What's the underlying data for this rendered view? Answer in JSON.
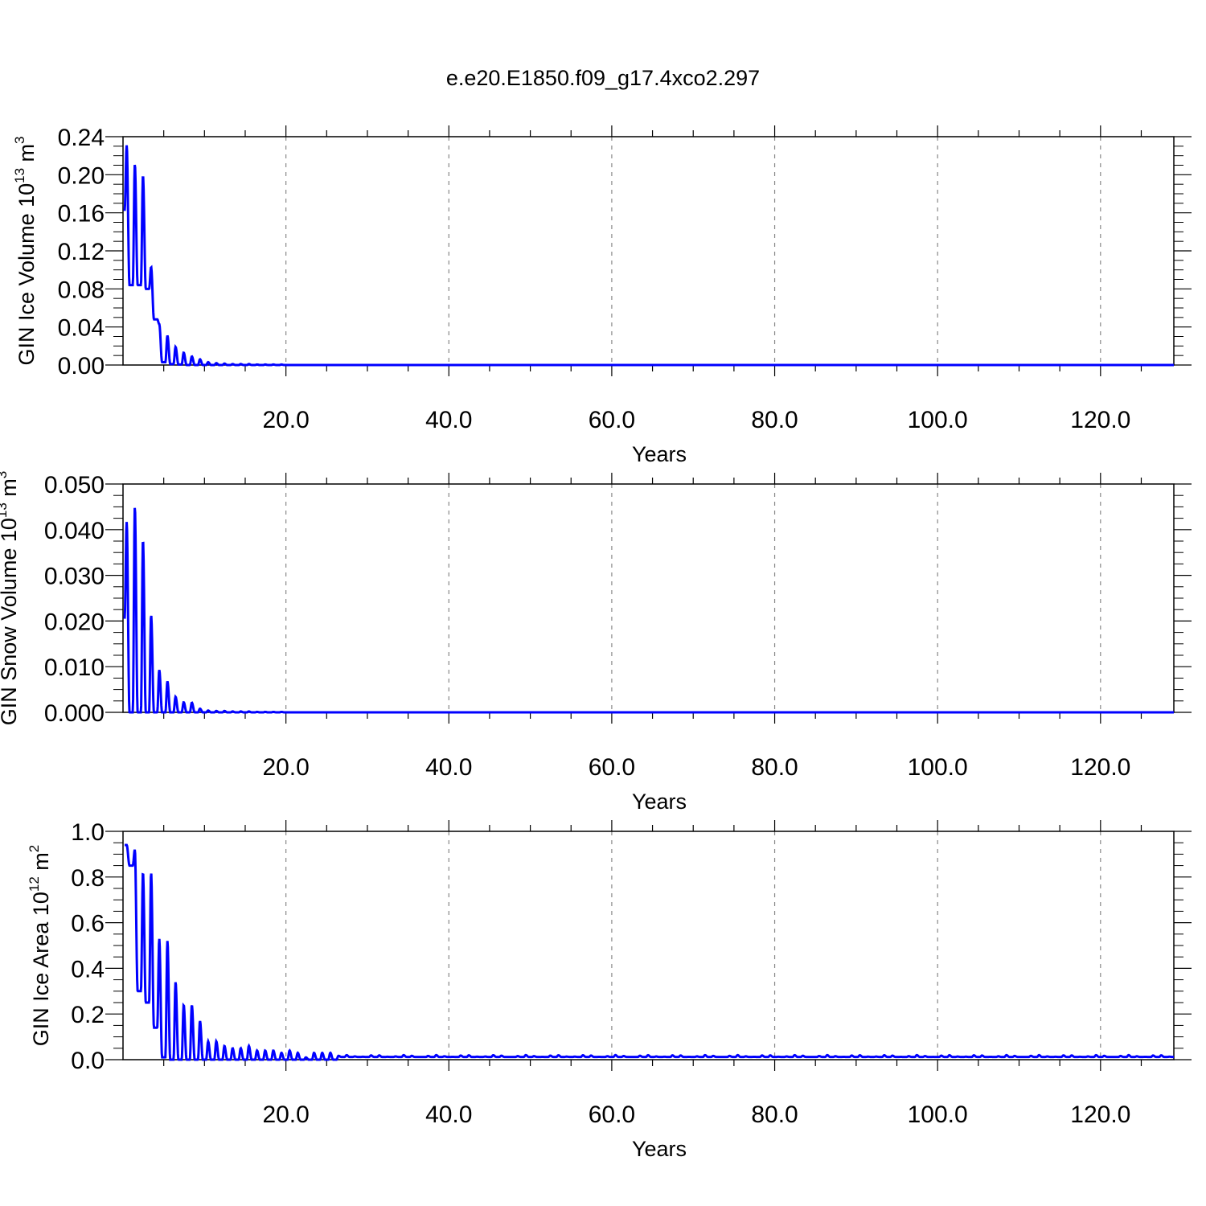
{
  "chart_data": [
    {
      "type": "line",
      "title": "e.e20.E1850.f09_g17.4xco2.297",
      "ylabel": {
        "main": "GIN Ice Volume 10",
        "exp": "13",
        "unit": " m",
        "unit_exp": "3"
      },
      "xlabel": "Years",
      "xlim": [
        0,
        129
      ],
      "ylim": [
        0,
        0.24
      ],
      "xticks": [
        20,
        40,
        60,
        80,
        100,
        120
      ],
      "xtick_labels": [
        "20.0",
        "40.0",
        "60.0",
        "80.0",
        "100.0",
        "120.0"
      ],
      "yticks": [
        0,
        0.04,
        0.08,
        0.12,
        0.16,
        0.2,
        0.24
      ],
      "ytick_labels": [
        "0.00",
        "0.04",
        "0.08",
        "0.12",
        "0.16",
        "0.20",
        "0.24"
      ],
      "grid": "x-dashed",
      "line_color": "#0000ff",
      "series": [
        {
          "annual_max": [
            0.231,
            0.211,
            0.199,
            0.103,
            0.043,
            0.031,
            0.019,
            0.013,
            0.009,
            0.006,
            0.003,
            0.002,
            0.0015,
            0.001,
            0.001,
            0.001,
            0.0005,
            0.0005,
            0.0005,
            0.0005
          ],
          "annual_min": [
            0.084,
            0.084,
            0.08,
            0.048,
            0.003,
            0.001,
            0.0005,
            0.0,
            0.0,
            0.0,
            0.0,
            0.0,
            0.0,
            0.0,
            0.0,
            0.0,
            0.0,
            0.0,
            0.0,
            0.0
          ],
          "start_value": 0.162,
          "tail_value": 0.0
        }
      ]
    },
    {
      "type": "line",
      "ylabel": {
        "main": "GIN Snow Volume 10",
        "exp": "13",
        "unit": " m",
        "unit_exp": "3"
      },
      "xlabel": "Years",
      "xlim": [
        0,
        129
      ],
      "ylim": [
        0,
        0.05
      ],
      "xticks": [
        20,
        40,
        60,
        80,
        100,
        120
      ],
      "xtick_labels": [
        "20.0",
        "40.0",
        "60.0",
        "80.0",
        "100.0",
        "120.0"
      ],
      "yticks": [
        0,
        0.01,
        0.02,
        0.03,
        0.04,
        0.05
      ],
      "ytick_labels": [
        "0.000",
        "0.010",
        "0.020",
        "0.030",
        "0.040",
        "0.050"
      ],
      "grid": "x-dashed",
      "line_color": "#0000ff",
      "series": [
        {
          "annual_max": [
            0.0417,
            0.045,
            0.0377,
            0.0213,
            0.0093,
            0.0068,
            0.0034,
            0.0022,
            0.0021,
            0.0008,
            0.0004,
            0.0003,
            0.0003,
            0.0002,
            0.0002,
            0.0002,
            0.0001,
            0.0001,
            0.0001,
            0.0001
          ],
          "annual_min": [
            0.0,
            0.0,
            0.0,
            0.0,
            0.0,
            0.0,
            0.0,
            0.0,
            0.0,
            0.0,
            0.0,
            0.0,
            0.0,
            0.0,
            0.0,
            0.0,
            0.0,
            0.0,
            0.0,
            0.0
          ],
          "start_value": 0.0205,
          "tail_value": 0.0
        }
      ]
    },
    {
      "type": "line",
      "ylabel": {
        "main": "GIN Ice Area 10",
        "exp": "12",
        "unit": " m",
        "unit_exp": "2"
      },
      "xlabel": "Years",
      "xlim": [
        0,
        129
      ],
      "ylim": [
        0,
        1.0
      ],
      "xticks": [
        20,
        40,
        60,
        80,
        100,
        120
      ],
      "xtick_labels": [
        "20.0",
        "40.0",
        "60.0",
        "80.0",
        "100.0",
        "120.0"
      ],
      "yticks": [
        0,
        0.2,
        0.4,
        0.6,
        0.8,
        1.0
      ],
      "ytick_labels": [
        "0.0",
        "0.2",
        "0.4",
        "0.6",
        "0.8",
        "1.0"
      ],
      "grid": "x-dashed",
      "line_color": "#0000ff",
      "series": [
        {
          "annual_max": [
            0.94,
            0.92,
            0.82,
            0.82,
            0.53,
            0.52,
            0.34,
            0.24,
            0.24,
            0.17,
            0.08,
            0.08,
            0.06,
            0.05,
            0.05,
            0.06,
            0.04,
            0.04,
            0.04,
            0.03,
            0.04,
            0.03,
            0.01,
            0.03,
            0.03,
            0.03
          ],
          "annual_min": [
            0.85,
            0.3,
            0.25,
            0.14,
            0.01,
            0.0,
            0.0,
            0.0,
            0.0,
            0.0,
            0.0,
            0.0,
            0.0,
            0.0,
            0.0,
            0.0,
            0.0,
            0.0,
            0.0,
            0.0,
            0.0,
            0.0,
            0.0,
            0.0,
            0.0,
            0.0
          ],
          "start_value": 0.94,
          "tail_value": 0.012
        }
      ]
    }
  ]
}
